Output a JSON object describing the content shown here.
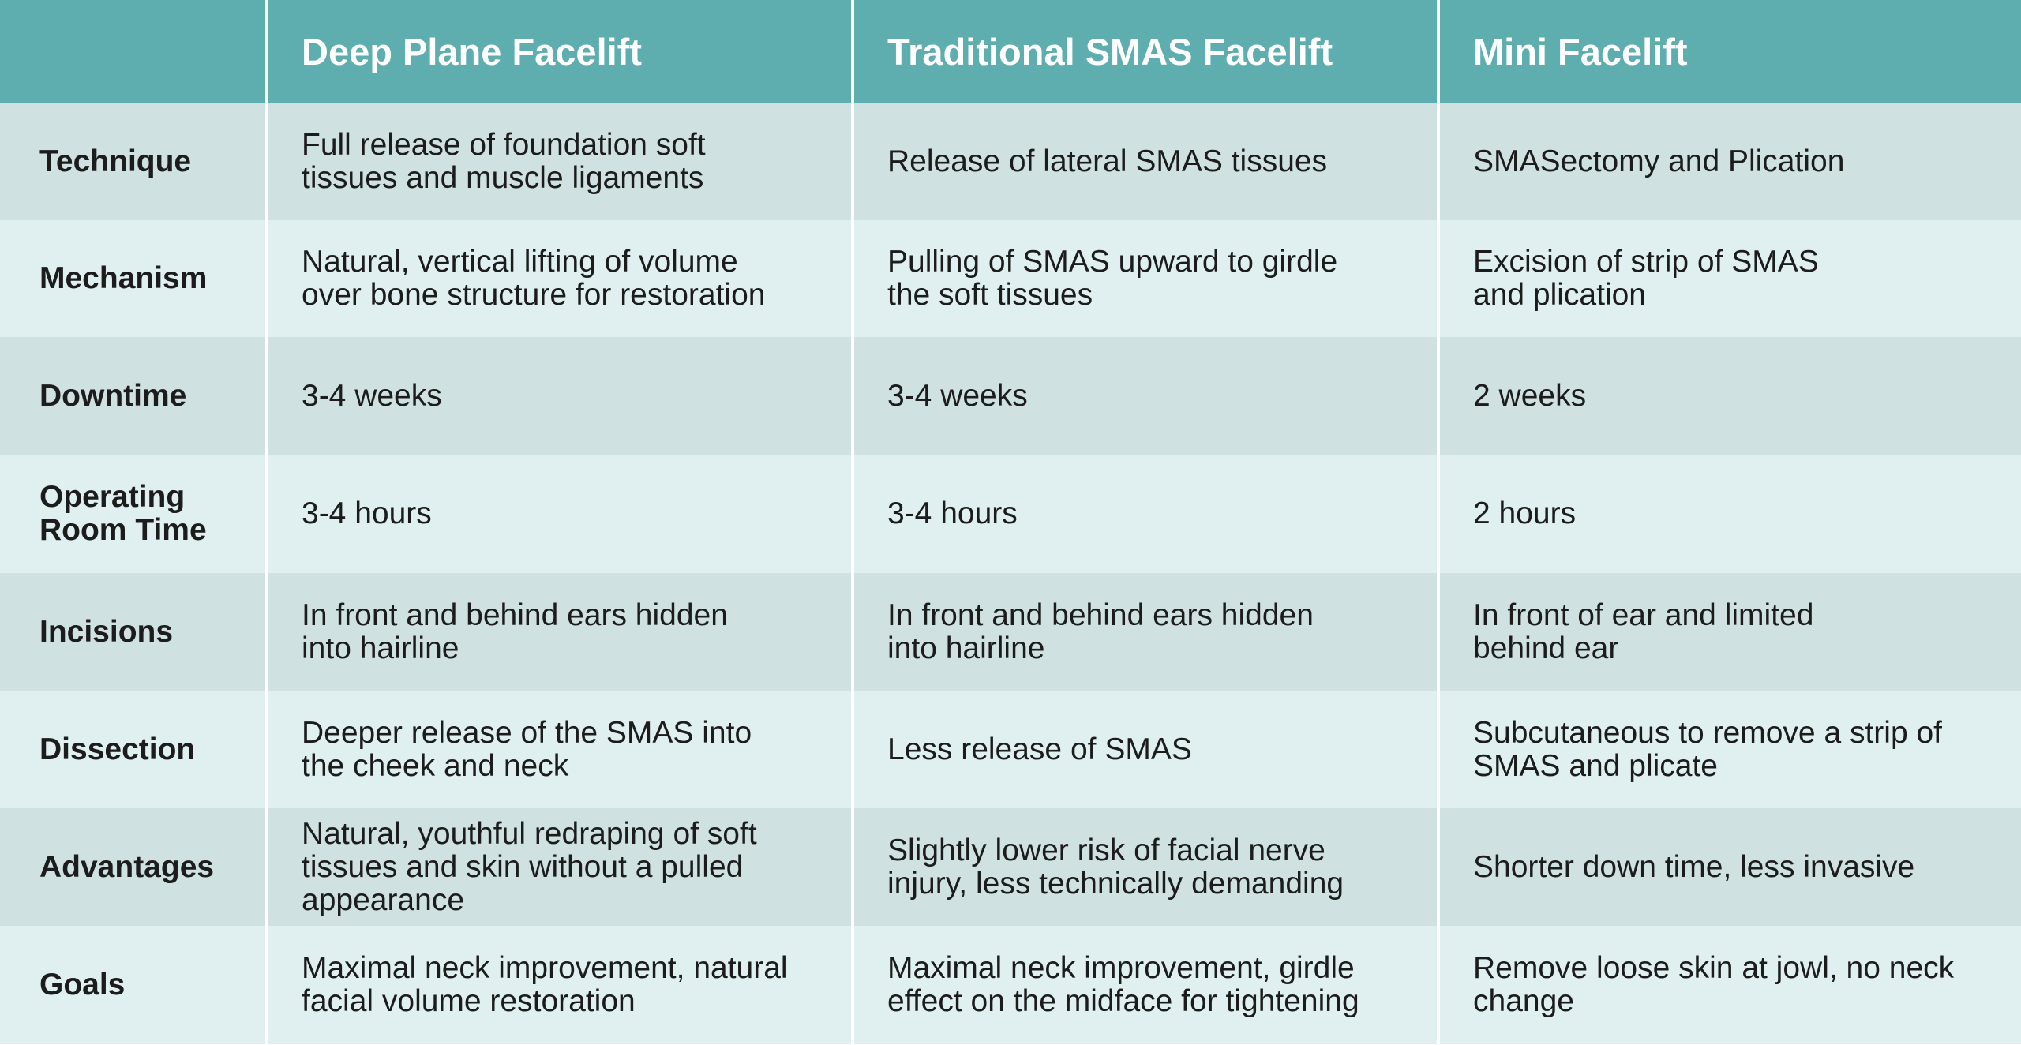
{
  "header": {
    "corner": "",
    "columns": [
      "Deep Plane Facelift",
      "Traditional SMAS Facelift",
      "Mini Facelift"
    ]
  },
  "rows": [
    {
      "label": "Technique",
      "values": [
        "Full release of foundation soft\ntissues and muscle ligaments",
        "Release of lateral SMAS tissues",
        "SMASectomy and Plication"
      ]
    },
    {
      "label": "Mechanism",
      "values": [
        "Natural, vertical lifting of volume\nover bone structure for restoration",
        "Pulling of SMAS upward to girdle\nthe soft tissues",
        "Excision of strip of SMAS\nand plication"
      ]
    },
    {
      "label": "Downtime",
      "values": [
        "3-4 weeks",
        "3-4 weeks",
        "2 weeks"
      ]
    },
    {
      "label": "Operating\nRoom Time",
      "values": [
        "3-4 hours",
        "3-4 hours",
        "2 hours"
      ]
    },
    {
      "label": "Incisions",
      "values": [
        "In front and behind ears hidden\ninto hairline",
        "In front and behind ears hidden\ninto hairline",
        "In front of ear and limited\nbehind ear"
      ]
    },
    {
      "label": "Dissection",
      "values": [
        "Deeper release of the SMAS into\nthe cheek and neck",
        "Less release of SMAS",
        "Subcutaneous to remove a strip of\nSMAS and plicate"
      ]
    },
    {
      "label": "Advantages",
      "values": [
        "Natural, youthful redraping of soft\ntissues and skin without a pulled\nappearance",
        "Slightly lower risk of facial nerve\ninjury, less technically demanding",
        "Shorter down time, less invasive"
      ]
    },
    {
      "label": "Goals",
      "values": [
        "Maximal neck improvement, natural\nfacial volume restoration",
        "Maximal neck improvement,  girdle\neffect on the midface for tightening",
        "Remove loose skin at jowl, no neck\nchange"
      ]
    }
  ],
  "colors": {
    "header_bg": "#5eaeb0",
    "row_dark": "#cfe1e1",
    "row_light": "#e0f0f0",
    "divider": "#ffffff"
  }
}
